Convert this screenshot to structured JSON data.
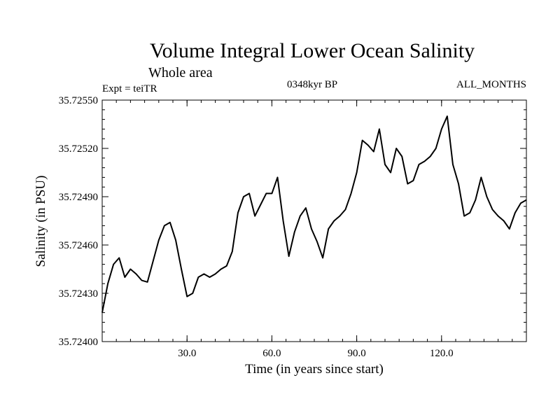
{
  "chart_data": {
    "type": "line",
    "title": "Volume Integral Lower Ocean Salinity",
    "subtitle": "Whole area",
    "experiment": "Expt = teiTR",
    "period": "0348kyr BP",
    "months": "ALL_MONTHS",
    "xlabel": "Time (in years since start)",
    "ylabel": "Salinity (in PSU)",
    "xlim": [
      0,
      150
    ],
    "ylim": [
      35.724,
      35.7255
    ],
    "x_ticks": [
      {
        "value": 30,
        "label": "30.0"
      },
      {
        "value": 60,
        "label": "60.0"
      },
      {
        "value": 90,
        "label": "90.0"
      },
      {
        "value": 120,
        "label": "120.0"
      }
    ],
    "y_ticks": [
      {
        "value": 35.724,
        "label": "35.72400"
      },
      {
        "value": 35.7243,
        "label": "35.72430"
      },
      {
        "value": 35.7246,
        "label": "35.72460"
      },
      {
        "value": 35.7249,
        "label": "35.72490"
      },
      {
        "value": 35.7252,
        "label": "35.72520"
      },
      {
        "value": 35.7255,
        "label": "35.72550"
      }
    ],
    "grid": false,
    "series": [
      {
        "name": "Salinity",
        "color": "#000000",
        "x": [
          0,
          2,
          4,
          6,
          8,
          10,
          12,
          14,
          16,
          18,
          20,
          22,
          24,
          26,
          28,
          30,
          32,
          34,
          36,
          38,
          40,
          42,
          44,
          46,
          48,
          50,
          52,
          54,
          56,
          58,
          60,
          62,
          64,
          66,
          68,
          70,
          72,
          74,
          76,
          78,
          80,
          82,
          84,
          86,
          88,
          90,
          92,
          94,
          96,
          98,
          100,
          102,
          104,
          106,
          108,
          110,
          112,
          114,
          116,
          118,
          120,
          122,
          124,
          126,
          128,
          130,
          132,
          134,
          136,
          138,
          140,
          142,
          144,
          146,
          148,
          150
        ],
        "y": [
          35.72418,
          35.72436,
          35.72448,
          35.72452,
          35.7244,
          35.72445,
          35.72442,
          35.72438,
          35.72437,
          35.7245,
          35.72463,
          35.72472,
          35.72474,
          35.72463,
          35.72445,
          35.72428,
          35.7243,
          35.7244,
          35.72442,
          35.7244,
          35.72442,
          35.72445,
          35.72447,
          35.72456,
          35.7248,
          35.7249,
          35.72492,
          35.72478,
          35.72485,
          35.72492,
          35.72492,
          35.72502,
          35.72475,
          35.72453,
          35.72468,
          35.72478,
          35.72483,
          35.7247,
          35.72462,
          35.72452,
          35.7247,
          35.72475,
          35.72478,
          35.72482,
          35.72492,
          35.72505,
          35.72525,
          35.72522,
          35.72518,
          35.72532,
          35.7251,
          35.72505,
          35.7252,
          35.72515,
          35.72498,
          35.725,
          35.7251,
          35.72512,
          35.72515,
          35.7252,
          35.72532,
          35.7254,
          35.7251,
          35.72498,
          35.72478,
          35.7248,
          35.72488,
          35.72502,
          35.7249,
          35.72482,
          35.72478,
          35.72475,
          35.7247,
          35.7248,
          35.72486,
          35.72488
        ]
      }
    ]
  }
}
